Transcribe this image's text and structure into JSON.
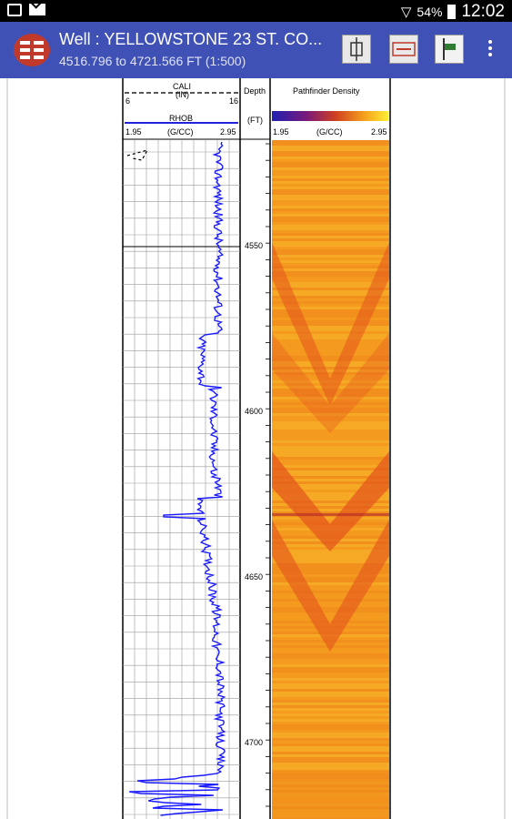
{
  "status_bar": {
    "battery": "54%",
    "time": "12:02"
  },
  "app_bar": {
    "title": "Well : YELLOWSTONE 23 ST. CO...",
    "subtitle": "4516.796 to 4721.566 FT (1:500)"
  },
  "log": {
    "track1": {
      "cali_label": "CALI",
      "cali_unit": "(IN)",
      "cali_min": "6",
      "cali_max": "16",
      "rhob_label": "RHOB",
      "rhob_unit": "(G/CC)",
      "rhob_min": "1.95",
      "rhob_max": "2.95"
    },
    "depth_track": {
      "label": "Depth",
      "unit": "(FT)",
      "ticks": [
        "4550",
        "4600",
        "4650",
        "4700"
      ]
    },
    "density_track": {
      "label": "Pathfinder Density",
      "unit": "(G/CC)",
      "min": "1.95",
      "max": "2.95"
    },
    "colors": {
      "curve": "#1a1aff",
      "track_background": "#f59d1e",
      "dark_band": "#e4541c",
      "scale_low": "#2020b0",
      "scale_high": "#ffee33"
    }
  }
}
